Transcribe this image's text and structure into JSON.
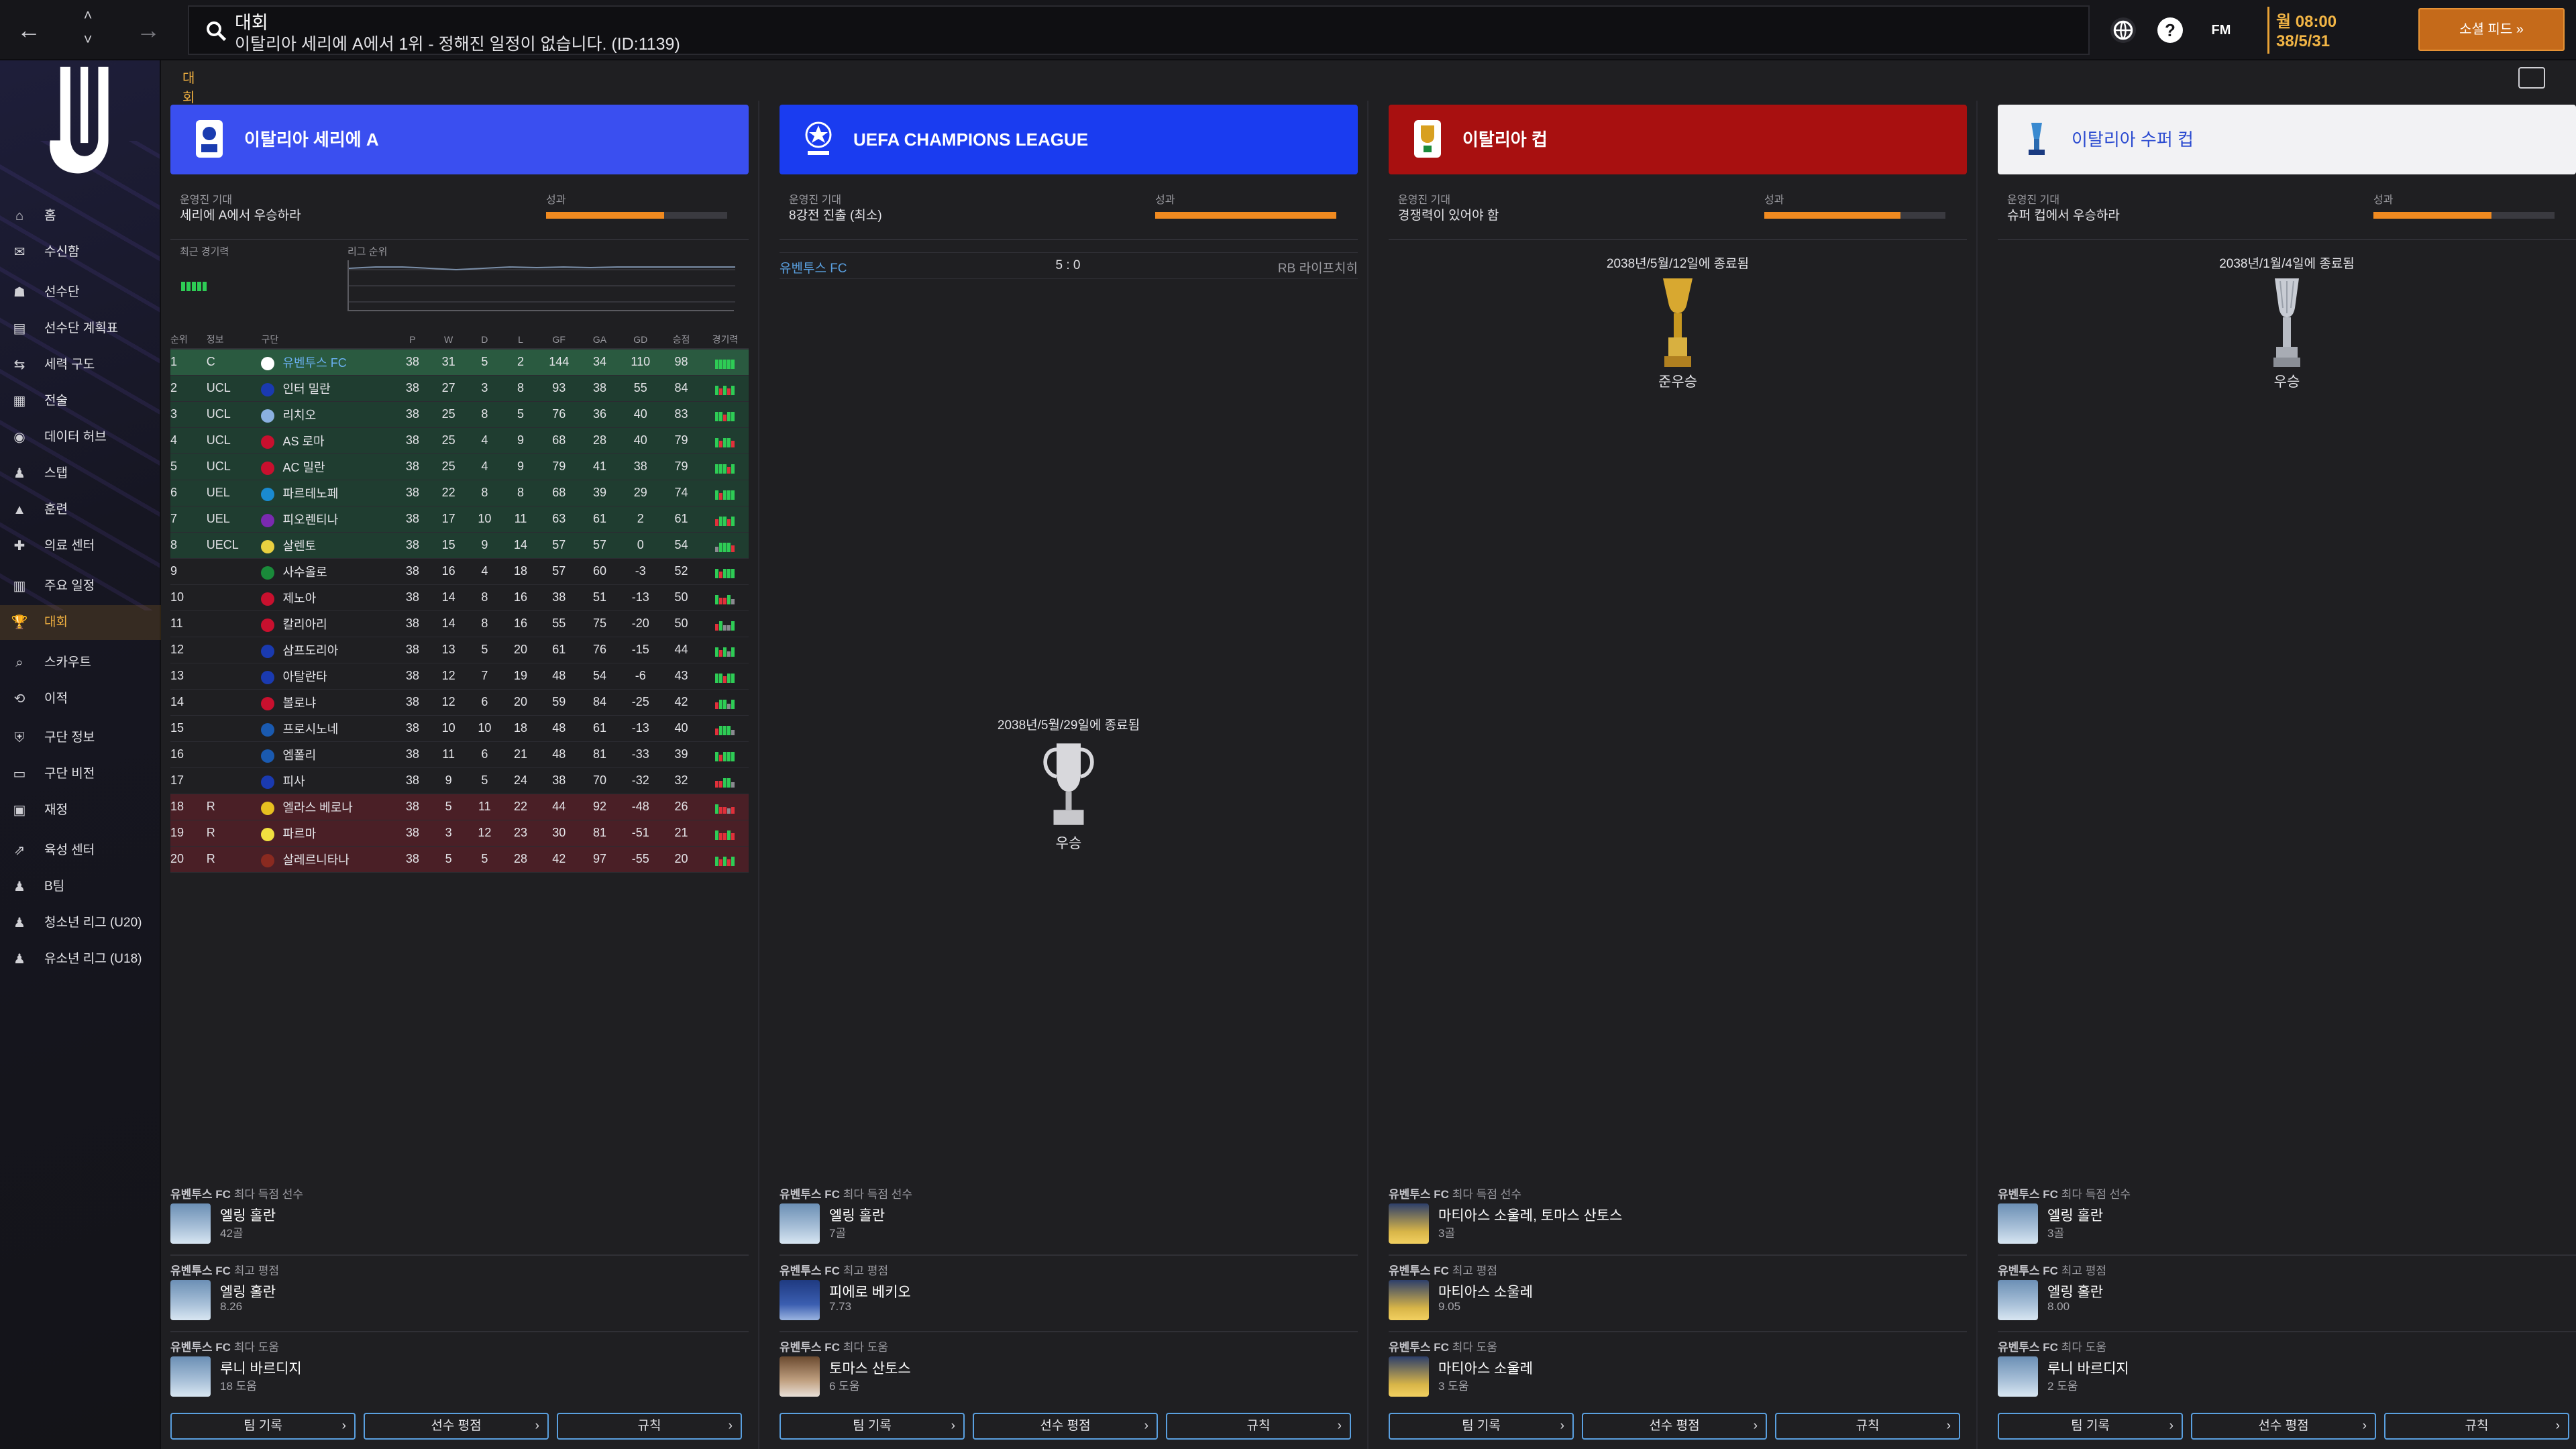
{
  "topbar": {
    "title": "대회",
    "subtitle": "이탈리아 세리에 A에서 1위 - 정해진 일정이 없습니다. (ID:1139)",
    "help": "?",
    "fm": "FM",
    "time": "월 08:00",
    "date": "38/5/31",
    "social_feed": "소셜 피드"
  },
  "sidebar": {
    "items": [
      "홈",
      "수신함",
      "선수단",
      "선수단 계획표",
      "세력 구도",
      "전술",
      "데이터 허브",
      "스탭",
      "훈련",
      "의료 센터",
      "주요 일정",
      "대회",
      "스카우트",
      "이적",
      "구단 정보",
      "구단 비전",
      "재정",
      "육성 센터",
      "B팀",
      "청소년 리그 (U20)",
      "유소년 리그 (U18)"
    ]
  },
  "tabs": {
    "active": "대회"
  },
  "panels": [
    {
      "name": "이탈리아 세리에 A",
      "color": "#3a4ff0",
      "expect_label": "운영진 기대",
      "expect_value": "세리에 A에서 우승하라",
      "perf_label": "성과",
      "perf": 0.65,
      "recent_label": "최근 경기력",
      "pos_label": "리그 순위",
      "headers": [
        "순위",
        "정보",
        "구단",
        "P",
        "W",
        "D",
        "L",
        "GF",
        "GA",
        "GD",
        "승점",
        "경기력"
      ],
      "rows": [
        [
          "1",
          "C",
          "유벤투스 FC",
          "38",
          "31",
          "5",
          "2",
          "144",
          "34",
          "110",
          "98"
        ],
        [
          "2",
          "UCL",
          "인터 밀란",
          "38",
          "27",
          "3",
          "8",
          "93",
          "38",
          "55",
          "84"
        ],
        [
          "3",
          "UCL",
          "리치오",
          "38",
          "25",
          "8",
          "5",
          "76",
          "36",
          "40",
          "83"
        ],
        [
          "4",
          "UCL",
          "AS 로마",
          "38",
          "25",
          "4",
          "9",
          "68",
          "28",
          "40",
          "79"
        ],
        [
          "5",
          "UCL",
          "AC 밀란",
          "38",
          "25",
          "4",
          "9",
          "79",
          "41",
          "38",
          "79"
        ],
        [
          "6",
          "UEL",
          "파르테노페",
          "38",
          "22",
          "8",
          "8",
          "68",
          "39",
          "29",
          "74"
        ],
        [
          "7",
          "UEL",
          "피오렌티나",
          "38",
          "17",
          "10",
          "11",
          "63",
          "61",
          "2",
          "61"
        ],
        [
          "8",
          "UECL",
          "살렌토",
          "38",
          "15",
          "9",
          "14",
          "57",
          "57",
          "0",
          "54"
        ],
        [
          "9",
          "",
          "사수올로",
          "38",
          "16",
          "4",
          "18",
          "57",
          "60",
          "-3",
          "52"
        ],
        [
          "10",
          "",
          "제노아",
          "38",
          "14",
          "8",
          "16",
          "38",
          "51",
          "-13",
          "50"
        ],
        [
          "11",
          "",
          "칼리아리",
          "38",
          "14",
          "8",
          "16",
          "55",
          "75",
          "-20",
          "50"
        ],
        [
          "12",
          "",
          "삼프도리아",
          "38",
          "13",
          "5",
          "20",
          "61",
          "76",
          "-15",
          "44"
        ],
        [
          "13",
          "",
          "아탈란타",
          "38",
          "12",
          "7",
          "19",
          "48",
          "54",
          "-6",
          "43"
        ],
        [
          "14",
          "",
          "볼로냐",
          "38",
          "12",
          "6",
          "20",
          "59",
          "84",
          "-25",
          "42"
        ],
        [
          "15",
          "",
          "프로시노네",
          "38",
          "10",
          "10",
          "18",
          "48",
          "61",
          "-13",
          "40"
        ],
        [
          "16",
          "",
          "엠폴리",
          "38",
          "11",
          "6",
          "21",
          "48",
          "81",
          "-33",
          "39"
        ],
        [
          "17",
          "",
          "피사",
          "38",
          "9",
          "5",
          "24",
          "38",
          "70",
          "-32",
          "32"
        ],
        [
          "18",
          "R",
          "엘라스 베로나",
          "38",
          "5",
          "11",
          "22",
          "44",
          "92",
          "-48",
          "26"
        ],
        [
          "19",
          "R",
          "파르마",
          "38",
          "3",
          "12",
          "23",
          "30",
          "81",
          "-51",
          "21"
        ],
        [
          "20",
          "R",
          "살레르니타나",
          "38",
          "5",
          "5",
          "28",
          "42",
          "97",
          "-55",
          "20"
        ]
      ],
      "stats": [
        {
          "title_club": "유벤투스 FC",
          "title": "최다 득점 선수",
          "name": "엘링 홀란",
          "value": "42골"
        },
        {
          "title_club": "유벤투스 FC",
          "title": "최고 평점",
          "name": "엘링 홀란",
          "value": "8.26"
        },
        {
          "title_club": "유벤투스 FC",
          "title": "최다 도움",
          "name": "루니 바르디지",
          "value": "18 도움"
        }
      ]
    },
    {
      "name": "UEFA CHAMPIONS LEAGUE",
      "color": "#1a3cf0",
      "expect_label": "운영진 기대",
      "expect_value": "8강전 진출 (최소)",
      "perf_label": "성과",
      "perf": 1.0,
      "match": {
        "home": "유벤투스 FC",
        "score": "5 : 0",
        "away": "RB 라이프치히"
      },
      "trophy": {
        "date": "2038년/5월/29일에 종료됨",
        "result": "우승"
      },
      "stats": [
        {
          "title_club": "유벤투스 FC",
          "title": "최다 득점 선수",
          "name": "엘링 홀란",
          "value": "7골"
        },
        {
          "title_club": "유벤투스 FC",
          "title": "최고 평점",
          "name": "피에로 베키오",
          "value": "7.73"
        },
        {
          "title_club": "유벤투스 FC",
          "title": "최다 도움",
          "name": "토마스 산토스",
          "value": "6 도움"
        }
      ]
    },
    {
      "name": "이탈리아 컵",
      "color": "#a81010",
      "expect_label": "운영진 기대",
      "expect_value": "경쟁력이 있어야 함",
      "perf_label": "성과",
      "perf": 0.75,
      "trophy": {
        "date": "2038년/5월/12일에 종료됨",
        "result": "준우승"
      },
      "stats": [
        {
          "title_club": "유벤투스 FC",
          "title": "최다 득점 선수",
          "name": "마티아스 소울레, 토마스 산토스",
          "value": "3골"
        },
        {
          "title_club": "유벤투스 FC",
          "title": "최고 평점",
          "name": "마티아스 소울레",
          "value": "9.05"
        },
        {
          "title_club": "유벤투스 FC",
          "title": "최다 도움",
          "name": "마티아스 소울레",
          "value": "3 도움"
        }
      ]
    },
    {
      "name": "이탈리아 수퍼 컵",
      "color": "#f2f2f4",
      "expect_label": "운영진 기대",
      "expect_value": "슈퍼 컵에서 우승하라",
      "perf_label": "성과",
      "perf": 0.65,
      "trophy": {
        "date": "2038년/1월/4일에 종료됨",
        "result": "우승"
      },
      "stats": [
        {
          "title_club": "유벤투스 FC",
          "title": "최다 득점 선수",
          "name": "엘링 홀란",
          "value": "3골"
        },
        {
          "title_club": "유벤투스 FC",
          "title": "최고 평점",
          "name": "엘링 홀란",
          "value": "8.00"
        },
        {
          "title_club": "유벤투스 FC",
          "title": "최다 도움",
          "name": "루니 바르디지",
          "value": "2 도움"
        }
      ]
    }
  ],
  "buttons": [
    "팀 기록",
    "선수 평점",
    "규칙"
  ]
}
